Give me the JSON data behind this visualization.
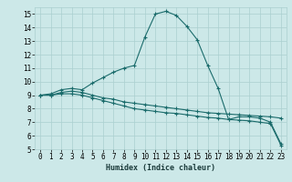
{
  "xlabel": "Humidex (Indice chaleur)",
  "bg_color": "#cce8e8",
  "grid_color": "#aacfcf",
  "line_color": "#1a6b6b",
  "xlim": [
    -0.5,
    23.5
  ],
  "ylim": [
    5,
    15.5
  ],
  "yticks": [
    5,
    6,
    7,
    8,
    9,
    10,
    11,
    12,
    13,
    14,
    15
  ],
  "xticks": [
    0,
    1,
    2,
    3,
    4,
    5,
    6,
    7,
    8,
    9,
    10,
    11,
    12,
    13,
    14,
    15,
    16,
    17,
    18,
    19,
    20,
    21,
    22,
    23
  ],
  "line1_x": [
    0,
    1,
    2,
    3,
    4,
    5,
    6,
    7,
    8,
    9,
    10,
    11,
    12,
    13,
    14,
    15,
    16,
    17,
    18,
    19,
    20,
    21,
    22,
    23
  ],
  "line1_y": [
    9.0,
    9.1,
    9.4,
    9.5,
    9.4,
    9.9,
    10.3,
    10.7,
    11.0,
    11.2,
    13.3,
    15.0,
    15.2,
    14.9,
    14.1,
    13.1,
    11.2,
    9.5,
    7.2,
    7.4,
    7.4,
    7.3,
    7.0,
    5.4
  ],
  "line2_x": [
    0,
    1,
    2,
    3,
    4,
    5,
    6,
    7,
    8,
    9,
    10,
    11,
    12,
    13,
    14,
    15,
    16,
    17,
    18,
    19,
    20,
    21,
    22,
    23
  ],
  "line2_y": [
    9.0,
    9.0,
    9.2,
    9.3,
    9.2,
    9.0,
    8.8,
    8.7,
    8.5,
    8.4,
    8.3,
    8.2,
    8.1,
    8.0,
    7.9,
    7.8,
    7.7,
    7.65,
    7.6,
    7.55,
    7.5,
    7.45,
    7.4,
    7.3
  ],
  "line3_x": [
    0,
    1,
    2,
    3,
    4,
    5,
    6,
    7,
    8,
    9,
    10,
    11,
    12,
    13,
    14,
    15,
    16,
    17,
    18,
    19,
    20,
    21,
    22,
    23
  ],
  "line3_y": [
    9.0,
    9.0,
    9.1,
    9.1,
    9.0,
    8.8,
    8.6,
    8.4,
    8.2,
    8.0,
    7.9,
    7.8,
    7.7,
    7.65,
    7.55,
    7.45,
    7.35,
    7.3,
    7.2,
    7.15,
    7.1,
    7.0,
    6.9,
    5.3
  ],
  "marker_size": 3,
  "linewidth": 0.8,
  "tick_fontsize": 5.5,
  "xlabel_fontsize": 6.0
}
